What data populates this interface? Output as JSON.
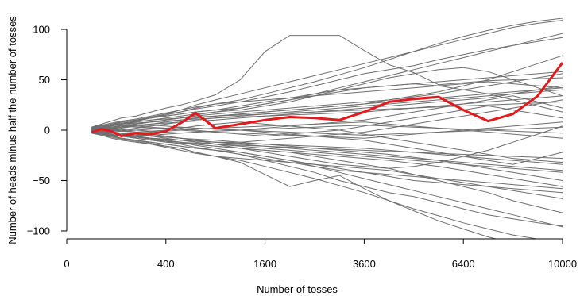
{
  "chart_data": {
    "type": "line",
    "title": "",
    "xlabel": "Number of tosses",
    "ylabel": "Number of heads minus half the number of tosses",
    "x_scale": "sqrt",
    "xlim": [
      0,
      10000
    ],
    "ylim": [
      -100,
      100
    ],
    "x_ticks": [
      {
        "value": 0,
        "label": "0"
      },
      {
        "value": 400,
        "label": "400"
      },
      {
        "value": 1600,
        "label": "1600"
      },
      {
        "value": 3600,
        "label": "3600"
      },
      {
        "value": 6400,
        "label": "6400"
      },
      {
        "value": 10000,
        "label": "10000"
      }
    ],
    "y_ticks": [
      {
        "value": -100,
        "label": "−100"
      },
      {
        "value": -50,
        "label": "−50"
      },
      {
        "value": 0,
        "label": "0"
      },
      {
        "value": 50,
        "label": "50"
      },
      {
        "value": 100,
        "label": "100"
      }
    ],
    "colors": {
      "background_paths": "#6e6e6e",
      "highlight_path": "#e31a1c"
    },
    "x": [
      25,
      49,
      81,
      121,
      196,
      289,
      400,
      529,
      676,
      900,
      1225,
      1600,
      2025,
      2500,
      3025,
      3600,
      4225,
      4900,
      5625,
      6400,
      7225,
      8100,
      9025,
      10000
    ],
    "highlight": {
      "values": [
        -2,
        1,
        -1,
        -6,
        -3,
        -4,
        -1,
        7,
        17,
        2,
        6,
        10,
        13,
        12,
        10,
        18,
        28,
        31,
        33,
        20,
        9,
        16,
        34,
        67
      ]
    },
    "series": [
      {
        "values": [
          2,
          4,
          6,
          8,
          10,
          13,
          16,
          18,
          22,
          26,
          30,
          36,
          42,
          48,
          55,
          62,
          70,
          78,
          86,
          93,
          99,
          104,
          108,
          111
        ]
      },
      {
        "values": [
          -2,
          -4,
          -6,
          -8,
          -10,
          -13,
          -16,
          -18,
          -22,
          -26,
          -30,
          -36,
          -42,
          -48,
          -55,
          -62,
          -70,
          -78,
          -85,
          -92,
          -98,
          -104,
          -108,
          -112
        ]
      },
      {
        "values": [
          3,
          6,
          9,
          12,
          14,
          18,
          22,
          25,
          29,
          35,
          50,
          78,
          94,
          94,
          94,
          79,
          65,
          57,
          45,
          47,
          49,
          50,
          51,
          52
        ]
      },
      {
        "values": [
          -3,
          -5,
          -8,
          -10,
          -12,
          -14,
          -16,
          -18,
          -22,
          -26,
          -32,
          -44,
          -56,
          -50,
          -45,
          -58,
          -70,
          -80,
          -90,
          -98,
          -106,
          -112,
          -116,
          -120
        ]
      },
      {
        "values": [
          1,
          3,
          5,
          7,
          9,
          12,
          16,
          20,
          25,
          30,
          36,
          42,
          48,
          54,
          60,
          66,
          72,
          78,
          84,
          90,
          96,
          102,
          106,
          109
        ]
      },
      {
        "values": [
          0,
          2,
          4,
          6,
          9,
          12,
          15,
          18,
          21,
          24,
          28,
          33,
          38,
          44,
          50,
          56,
          60,
          64,
          70,
          75,
          80,
          84,
          88,
          92
        ]
      },
      {
        "values": [
          -1,
          -3,
          -5,
          -6,
          -7,
          -9,
          -11,
          -14,
          -17,
          -20,
          -24,
          -30,
          -36,
          -42,
          -50,
          -56,
          -62,
          -66,
          -72,
          -78,
          -84,
          -88,
          -92,
          -95
        ]
      },
      {
        "values": [
          2,
          3,
          4,
          6,
          8,
          10,
          12,
          14,
          16,
          18,
          20,
          24,
          28,
          34,
          40,
          46,
          52,
          56,
          60,
          62,
          58,
          50,
          42,
          34
        ]
      },
      {
        "values": [
          -2,
          -3,
          -4,
          -6,
          -8,
          -10,
          -12,
          -13,
          -14,
          -16,
          -18,
          -20,
          -22,
          -26,
          -30,
          -34,
          -38,
          -44,
          -50,
          -56,
          -62,
          -70,
          -76,
          -82
        ]
      },
      {
        "values": [
          1,
          2,
          1,
          0,
          -2,
          -4,
          -6,
          -8,
          -10,
          -14,
          -18,
          -22,
          -26,
          -30,
          -34,
          -36,
          -38,
          -36,
          -32,
          -26,
          -20,
          -12,
          -4,
          4
        ]
      },
      {
        "values": [
          -1,
          0,
          1,
          3,
          5,
          6,
          8,
          10,
          12,
          14,
          16,
          18,
          20,
          22,
          24,
          26,
          30,
          34,
          38,
          44,
          50,
          58,
          66,
          74
        ]
      },
      {
        "values": [
          0,
          -1,
          -2,
          -3,
          -4,
          -6,
          -8,
          -10,
          -11,
          -12,
          -12,
          -10,
          -8,
          -6,
          -4,
          -2,
          2,
          6,
          10,
          14,
          18,
          22,
          26,
          30
        ]
      },
      {
        "values": [
          1,
          2,
          3,
          4,
          5,
          6,
          7,
          8,
          9,
          10,
          12,
          14,
          16,
          18,
          20,
          22,
          24,
          26,
          28,
          30,
          32,
          36,
          40,
          44
        ]
      },
      {
        "values": [
          -1,
          -2,
          -3,
          -4,
          -5,
          -6,
          -7,
          -8,
          -9,
          -10,
          -12,
          -14,
          -16,
          -18,
          -20,
          -22,
          -24,
          -27,
          -30,
          -34,
          -38,
          -42,
          -46,
          -50
        ]
      },
      {
        "values": [
          2,
          1,
          0,
          2,
          4,
          3,
          2,
          1,
          0,
          -2,
          -4,
          -6,
          -4,
          -2,
          0,
          4,
          8,
          12,
          16,
          20,
          24,
          20,
          16,
          12
        ]
      },
      {
        "values": [
          -2,
          -1,
          0,
          -1,
          -2,
          -1,
          0,
          2,
          4,
          6,
          8,
          6,
          4,
          2,
          0,
          -4,
          -8,
          -12,
          -16,
          -20,
          -24,
          -28,
          -30,
          -32
        ]
      },
      {
        "values": [
          0,
          1,
          3,
          5,
          6,
          8,
          10,
          12,
          15,
          18,
          22,
          26,
          30,
          34,
          38,
          42,
          44,
          46,
          44,
          40,
          36,
          30,
          24,
          18
        ]
      },
      {
        "values": [
          0,
          -1,
          -3,
          -5,
          -6,
          -8,
          -10,
          -12,
          -15,
          -18,
          -22,
          -26,
          -30,
          -34,
          -38,
          -42,
          -46,
          -50,
          -52,
          -54,
          -56,
          -58,
          -60,
          -62
        ]
      },
      {
        "values": [
          1,
          0,
          -1,
          0,
          2,
          4,
          6,
          8,
          10,
          12,
          14,
          16,
          18,
          20,
          22,
          24,
          26,
          28,
          30,
          32,
          34,
          36,
          38,
          40
        ]
      },
      {
        "values": [
          -1,
          0,
          1,
          0,
          -2,
          -4,
          -6,
          -8,
          -10,
          -12,
          -14,
          -16,
          -18,
          -20,
          -22,
          -24,
          -26,
          -28,
          -30,
          -32,
          -34,
          -36,
          -38,
          -40
        ]
      },
      {
        "values": [
          3,
          5,
          7,
          9,
          11,
          14,
          17,
          20,
          23,
          26,
          28,
          30,
          32,
          34,
          36,
          38,
          40,
          42,
          44,
          46,
          48,
          46,
          44,
          42
        ]
      },
      {
        "values": [
          -3,
          -5,
          -7,
          -9,
          -11,
          -14,
          -17,
          -20,
          -23,
          -26,
          -28,
          -30,
          -32,
          -34,
          -36,
          -38,
          -40,
          -44,
          -48,
          -52,
          -56,
          -60,
          -64,
          -68
        ]
      },
      {
        "values": [
          2,
          4,
          5,
          6,
          7,
          8,
          9,
          10,
          11,
          12,
          13,
          14,
          15,
          16,
          17,
          18,
          20,
          22,
          24,
          26,
          28,
          30,
          32,
          34
        ]
      },
      {
        "values": [
          -2,
          -4,
          -5,
          -6,
          -7,
          -8,
          -9,
          -10,
          -11,
          -12,
          -13,
          -14,
          -15,
          -16,
          -17,
          -18,
          -20,
          -22,
          -24,
          -26,
          -28,
          -30,
          -32,
          -34
        ]
      },
      {
        "values": [
          0,
          2,
          3,
          4,
          3,
          2,
          1,
          0,
          -1,
          -2,
          -3,
          -4,
          -5,
          -6,
          -7,
          -8,
          -6,
          -4,
          -2,
          0,
          2,
          4,
          6,
          8
        ]
      },
      {
        "values": [
          0,
          -2,
          -3,
          -4,
          -3,
          -2,
          -1,
          0,
          1,
          2,
          3,
          4,
          5,
          6,
          7,
          8,
          6,
          4,
          2,
          0,
          -2,
          -4,
          -6,
          -8
        ]
      },
      {
        "values": [
          1,
          3,
          5,
          8,
          10,
          12,
          14,
          16,
          18,
          20,
          22,
          26,
          30,
          36,
          42,
          48,
          54,
          60,
          66,
          72,
          78,
          84,
          90,
          96
        ]
      },
      {
        "values": [
          -1,
          -3,
          -5,
          -8,
          -10,
          -12,
          -14,
          -16,
          -18,
          -20,
          -22,
          -26,
          -30,
          -36,
          -42,
          -48,
          -54,
          -60,
          -66,
          -72,
          -78,
          -84,
          -90,
          -96
        ]
      },
      {
        "values": [
          2,
          3,
          2,
          1,
          0,
          -1,
          -2,
          -3,
          -2,
          -1,
          0,
          2,
          4,
          6,
          8,
          10,
          14,
          18,
          22,
          26,
          30,
          34,
          28,
          22
        ]
      },
      {
        "values": [
          -2,
          -3,
          -2,
          -1,
          0,
          1,
          2,
          3,
          2,
          1,
          0,
          -2,
          -4,
          -6,
          -8,
          -10,
          -14,
          -18,
          -22,
          -26,
          -30,
          -34,
          -28,
          -22
        ]
      },
      {
        "values": [
          1,
          2,
          4,
          6,
          8,
          10,
          11,
          12,
          13,
          14,
          15,
          16,
          17,
          18,
          19,
          20,
          21,
          22,
          23,
          24,
          25,
          26,
          27,
          28
        ]
      },
      {
        "values": [
          -1,
          -2,
          -4,
          -6,
          -8,
          -10,
          -11,
          -12,
          -13,
          -14,
          -15,
          -16,
          -17,
          -18,
          -19,
          -20,
          -21,
          -22,
          -23,
          -24,
          -25,
          -26,
          -27,
          -28
        ]
      },
      {
        "values": [
          0,
          1,
          2,
          4,
          6,
          8,
          10,
          12,
          14,
          16,
          18,
          20,
          22,
          24,
          26,
          28,
          30,
          33,
          36,
          40,
          44,
          48,
          52,
          56
        ]
      },
      {
        "values": [
          0,
          -1,
          -2,
          -4,
          -6,
          -8,
          -10,
          -12,
          -14,
          -16,
          -18,
          -20,
          -22,
          -24,
          -26,
          -28,
          -30,
          -33,
          -36,
          -40,
          -44,
          -48,
          -52,
          -56
        ]
      },
      {
        "values": [
          3,
          4,
          5,
          6,
          7,
          8,
          9,
          10,
          12,
          14,
          16,
          18,
          20,
          22,
          24,
          26,
          28,
          30,
          32,
          34,
          36,
          38,
          40,
          42
        ]
      },
      {
        "values": [
          -3,
          -4,
          -5,
          -6,
          -7,
          -8,
          -9,
          -10,
          -12,
          -14,
          -16,
          -18,
          -20,
          -22,
          -24,
          -26,
          -28,
          -30,
          -32,
          -34,
          -36,
          -38,
          -40,
          -42
        ]
      },
      {
        "values": [
          1,
          0,
          2,
          3,
          4,
          5,
          4,
          3,
          2,
          1,
          0,
          -1,
          -2,
          -3,
          -4,
          -5,
          -4,
          -3,
          -2,
          -1,
          0,
          1,
          2,
          3
        ]
      },
      {
        "values": [
          -1,
          0,
          -2,
          -3,
          -4,
          -5,
          -4,
          -3,
          -2,
          -1,
          0,
          1,
          2,
          3,
          4,
          5,
          4,
          3,
          2,
          1,
          0,
          -1,
          -2,
          -3
        ]
      },
      {
        "values": [
          2,
          4,
          6,
          8,
          10,
          12,
          14,
          16,
          18,
          20,
          24,
          28,
          32,
          36,
          40,
          42,
          44,
          46,
          48,
          50,
          52,
          54,
          56,
          58
        ]
      },
      {
        "values": [
          -2,
          -4,
          -6,
          -8,
          -10,
          -12,
          -14,
          -16,
          -18,
          -20,
          -24,
          -28,
          -32,
          -36,
          -40,
          -42,
          -44,
          -46,
          -48,
          -50,
          -52,
          -54,
          -56,
          -58
        ]
      }
    ]
  }
}
